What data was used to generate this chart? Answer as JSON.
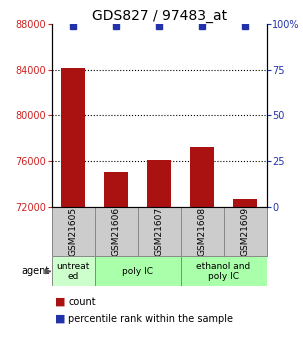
{
  "title": "GDS827 / 97483_at",
  "samples": [
    "GSM21605",
    "GSM21606",
    "GSM21607",
    "GSM21608",
    "GSM21609"
  ],
  "counts": [
    84200,
    75000,
    76100,
    77200,
    72700
  ],
  "percentiles": [
    99,
    99,
    99,
    99,
    99
  ],
  "ylim_left": [
    72000,
    88000
  ],
  "ylim_right": [
    0,
    100
  ],
  "yticks_left": [
    72000,
    76000,
    80000,
    84000,
    88000
  ],
  "yticks_right": [
    0,
    25,
    50,
    75,
    100
  ],
  "bar_color": "#aa1111",
  "dot_color": "#2233aa",
  "bar_width": 0.55,
  "title_fontsize": 10,
  "tick_fontsize": 7,
  "label_fontsize": 7,
  "legend_fontsize": 7,
  "background_color": "#ffffff",
  "sample_box_color": "#cccccc",
  "group_untreated_color": "#ccffcc",
  "group_poly_color": "#aaffaa",
  "left_tick_color": "#cc2222",
  "right_tick_color": "#2233aa"
}
